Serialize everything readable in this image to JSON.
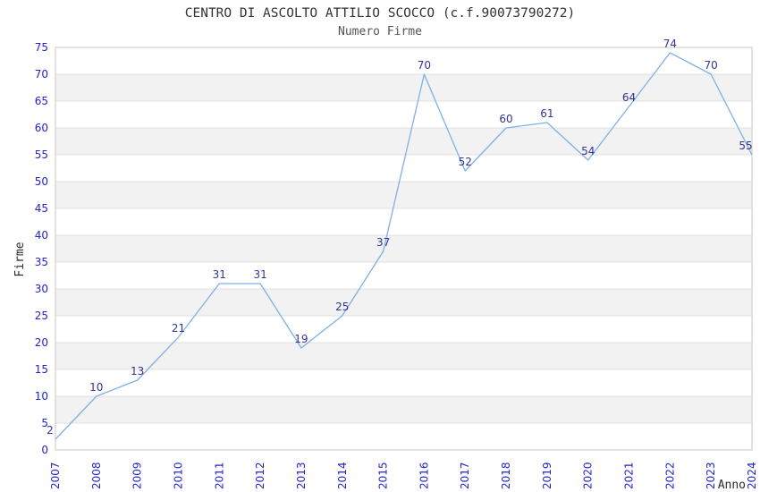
{
  "chart_data": {
    "type": "line",
    "title": "CENTRO DI ASCOLTO ATTILIO SCOCCO (c.f.90073790272)",
    "subtitle": "Numero Firme",
    "xlabel": "Anno",
    "ylabel": "Firme",
    "categories": [
      "2007",
      "2008",
      "2009",
      "2010",
      "2011",
      "2012",
      "2013",
      "2014",
      "2015",
      "2016",
      "2017",
      "2018",
      "2019",
      "2020",
      "2021",
      "2022",
      "2023",
      "2024"
    ],
    "series": [
      {
        "name": "Numero Firme",
        "values": [
          2,
          10,
          13,
          21,
          31,
          31,
          19,
          25,
          37,
          70,
          52,
          60,
          61,
          54,
          64,
          74,
          70,
          55
        ]
      }
    ],
    "ylim": [
      0,
      75
    ],
    "ytick_step": 5,
    "grid": "horizontal alternating bands every 5 units (white / light grey), no vertical gridlines",
    "legend_position": "none",
    "point_labels_visible": true,
    "colors": {
      "line": "#7fb0e6",
      "point_label": "#333399",
      "tick_label": "#2323cc",
      "band_fill": "#f2f2f2",
      "gridline": "#e0e0e0",
      "plot_border": "#cfcfcf",
      "plot_background": "#ffffff"
    }
  }
}
